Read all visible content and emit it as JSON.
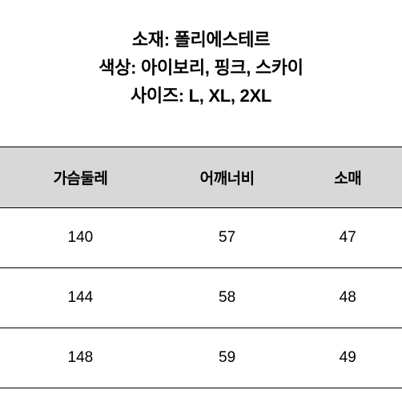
{
  "info": {
    "material": "소재: 폴리에스테르",
    "color": "색상: 아이보리, 핑크, 스카이",
    "size": "사이즈: L, XL, 2XL"
  },
  "table": {
    "type": "table",
    "columns": [
      "가슴둘레",
      "어깨너비",
      "소매"
    ],
    "rows": [
      [
        "140",
        "57",
        "47"
      ],
      [
        "144",
        "58",
        "48"
      ],
      [
        "148",
        "59",
        "49"
      ]
    ],
    "column_widths": [
      "40%",
      "33%",
      "27%"
    ],
    "header_bg_color": "#d8d8d8",
    "border_color": "#000000",
    "header_fontsize": 19,
    "cell_fontsize": 19,
    "header_fontweight": 600,
    "cell_fontweight": 400
  },
  "styling": {
    "background_color": "#ffffff",
    "info_fontsize": 22,
    "info_fontweight": 600,
    "info_color": "#000000"
  }
}
